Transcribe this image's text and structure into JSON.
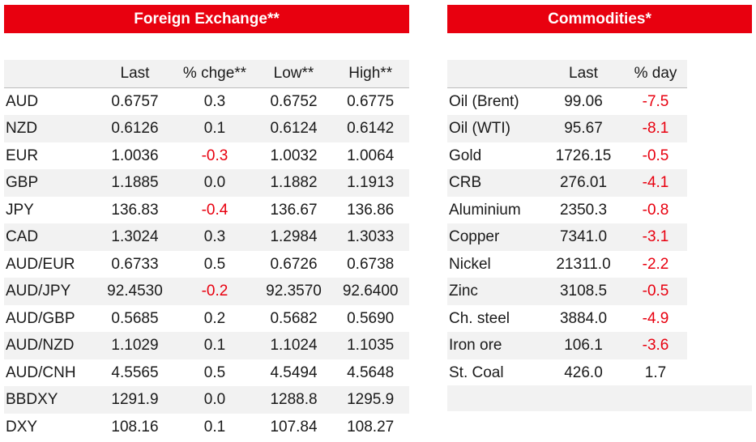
{
  "colors": {
    "accent": "#e8000f",
    "stripe": "#f2f2f2",
    "negative": "#e8000f"
  },
  "fx": {
    "title": "Foreign Exchange**",
    "columns": [
      "",
      "Last",
      "% chge**",
      "Low**",
      "High**"
    ],
    "rows": [
      {
        "label": "AUD",
        "last": "0.6757",
        "chg": "0.3",
        "low": "0.6752",
        "high": "0.6775",
        "neg": false
      },
      {
        "label": "NZD",
        "last": "0.6126",
        "chg": "0.1",
        "low": "0.6124",
        "high": "0.6142",
        "neg": false
      },
      {
        "label": "EUR",
        "last": "1.0036",
        "chg": "-0.3",
        "low": "1.0032",
        "high": "1.0064",
        "neg": true
      },
      {
        "label": "GBP",
        "last": "1.1885",
        "chg": "0.0",
        "low": "1.1882",
        "high": "1.1913",
        "neg": false
      },
      {
        "label": "JPY",
        "last": "136.83",
        "chg": "-0.4",
        "low": "136.67",
        "high": "136.86",
        "neg": true
      },
      {
        "label": "CAD",
        "last": "1.3024",
        "chg": "0.3",
        "low": "1.2984",
        "high": "1.3033",
        "neg": false
      },
      {
        "label": "AUD/EUR",
        "last": "0.6733",
        "chg": "0.5",
        "low": "0.6726",
        "high": "0.6738",
        "neg": false
      },
      {
        "label": "AUD/JPY",
        "last": "92.4530",
        "chg": "-0.2",
        "low": "92.3570",
        "high": "92.6400",
        "neg": true
      },
      {
        "label": "AUD/GBP",
        "last": "0.5685",
        "chg": "0.2",
        "low": "0.5682",
        "high": "0.5690",
        "neg": false
      },
      {
        "label": "AUD/NZD",
        "last": "1.1029",
        "chg": "0.1",
        "low": "1.1024",
        "high": "1.1035",
        "neg": false
      },
      {
        "label": "AUD/CNH",
        "last": "4.5565",
        "chg": "0.5",
        "low": "4.5494",
        "high": "4.5648",
        "neg": false
      },
      {
        "label": "BBDXY",
        "last": "1291.9",
        "chg": "0.0",
        "low": "1288.8",
        "high": "1295.9",
        "neg": false
      },
      {
        "label": "DXY",
        "last": "108.16",
        "chg": "0.1",
        "low": "107.84",
        "high": "108.27",
        "neg": false
      }
    ]
  },
  "commodities": {
    "title": "Commodities*",
    "columns": [
      "",
      "Last",
      "% day"
    ],
    "rows": [
      {
        "label": "Oil (Brent)",
        "last": "99.06",
        "day": "-7.5",
        "neg": true
      },
      {
        "label": "Oil (WTI)",
        "last": "95.67",
        "day": "-8.1",
        "neg": true
      },
      {
        "label": "Gold",
        "last": "1726.15",
        "day": "-0.5",
        "neg": true
      },
      {
        "label": "CRB",
        "last": "276.01",
        "day": "-4.1",
        "neg": true
      },
      {
        "label": "Aluminium",
        "last": "2350.3",
        "day": "-0.8",
        "neg": true
      },
      {
        "label": "Copper",
        "last": "7341.0",
        "day": "-3.1",
        "neg": true
      },
      {
        "label": "Nickel",
        "last": "21311.0",
        "day": "-2.2",
        "neg": true
      },
      {
        "label": "Zinc",
        "last": "3108.5",
        "day": "-0.5",
        "neg": true
      },
      {
        "label": "Ch. steel",
        "last": "3884.0",
        "day": "-4.9",
        "neg": true
      },
      {
        "label": "Iron ore",
        "last": "106.1",
        "day": "-3.6",
        "neg": true
      },
      {
        "label": "St. Coal",
        "last": "426.0",
        "day": "1.7",
        "neg": false
      }
    ]
  }
}
